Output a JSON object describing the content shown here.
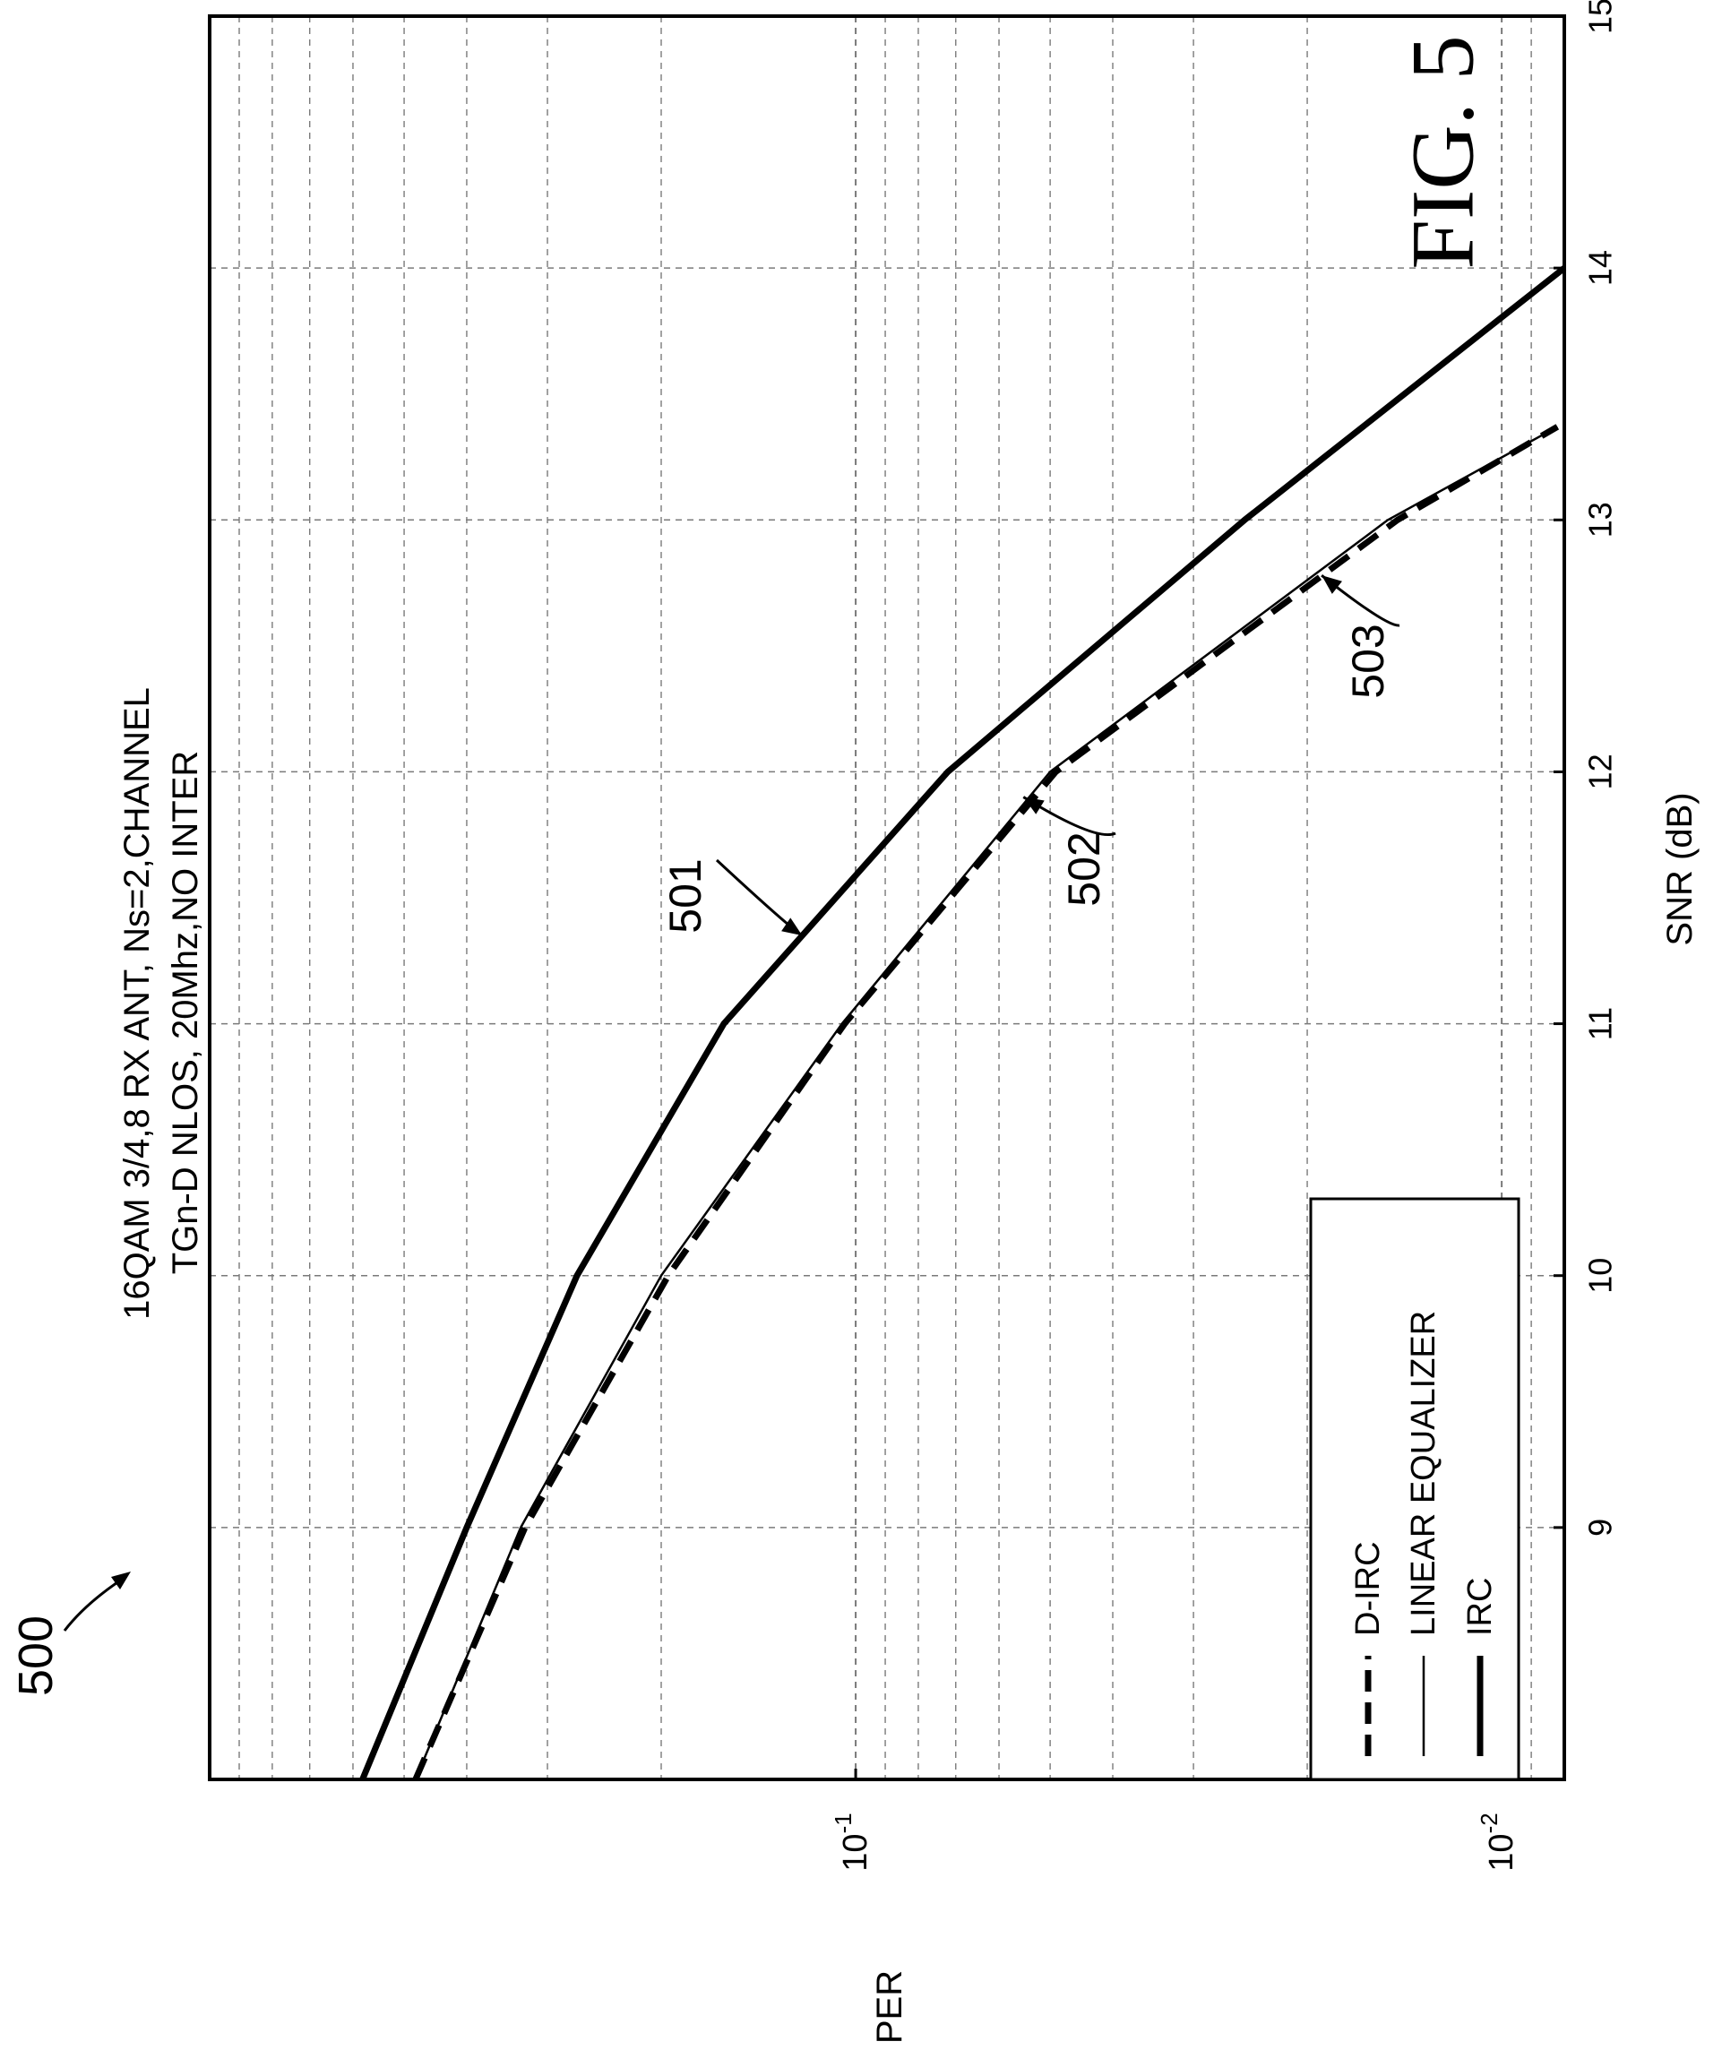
{
  "figure_label": "FIG. 5",
  "figure_ref": "500",
  "colors": {
    "ink": "#000000",
    "grid": "#7a7a7a",
    "background": "#ffffff"
  },
  "chart_data": {
    "type": "line",
    "title_lines": [
      "16QAM 3/4,8 RX ANT, Ns=2,CHANNEL",
      "TGn-D NLOS, 20Mhz,NO INTER"
    ],
    "xlabel": "SNR (dB)",
    "ylabel": "PER",
    "x_scale": "linear",
    "y_scale": "log",
    "xlim": [
      8,
      15
    ],
    "ylim": [
      0.008,
      1
    ],
    "x_ticks": [
      9,
      10,
      11,
      12,
      13,
      14,
      15
    ],
    "y_ticks": [
      {
        "value": 0.1,
        "base": "10",
        "exp": "-1"
      },
      {
        "value": 0.01,
        "base": "10",
        "exp": "-2"
      }
    ],
    "grid": true,
    "orientation": "figure rotated 90 degrees counter-clockwise",
    "legend": {
      "placement": "lower-left",
      "entries": [
        {
          "label": "D-IRC",
          "style": "dashed-thick"
        },
        {
          "label": "LINEAR EQUALIZER",
          "style": "solid-thin"
        },
        {
          "label": "IRC",
          "style": "solid-thick"
        }
      ]
    },
    "series": [
      {
        "name": "IRC",
        "ref": "501",
        "style": "solid-thick",
        "x": [
          8.0,
          9.0,
          10.0,
          11.0,
          12.0,
          13.0,
          14.0
        ],
        "y": [
          0.58,
          0.4,
          0.27,
          0.16,
          0.072,
          0.025,
          0.0061
        ]
      },
      {
        "name": "LINEAR EQUALIZER",
        "ref": "502",
        "style": "solid-thin",
        "x": [
          8.0,
          9.0,
          10.0,
          11.0,
          12.0,
          13.0,
          13.37
        ],
        "y": [
          0.48,
          0.33,
          0.2,
          0.105,
          0.05,
          0.015,
          0.0082
        ]
      },
      {
        "name": "D-IRC",
        "ref": "503",
        "style": "dashed-thick",
        "x": [
          8.0,
          9.0,
          10.0,
          11.0,
          12.0,
          13.0,
          13.37
        ],
        "y": [
          0.48,
          0.325,
          0.195,
          0.104,
          0.049,
          0.0145,
          0.0082
        ]
      }
    ],
    "annotations": [
      {
        "label": "501",
        "points_to": "IRC",
        "at_x": 11.35,
        "at_y": 0.121
      },
      {
        "label": "502",
        "points_to": "LINEAR EQUALIZER",
        "at_x": 11.9,
        "at_y": 0.055
      },
      {
        "label": "503",
        "points_to": "D-IRC",
        "at_x": 12.78,
        "at_y": 0.019
      }
    ]
  }
}
